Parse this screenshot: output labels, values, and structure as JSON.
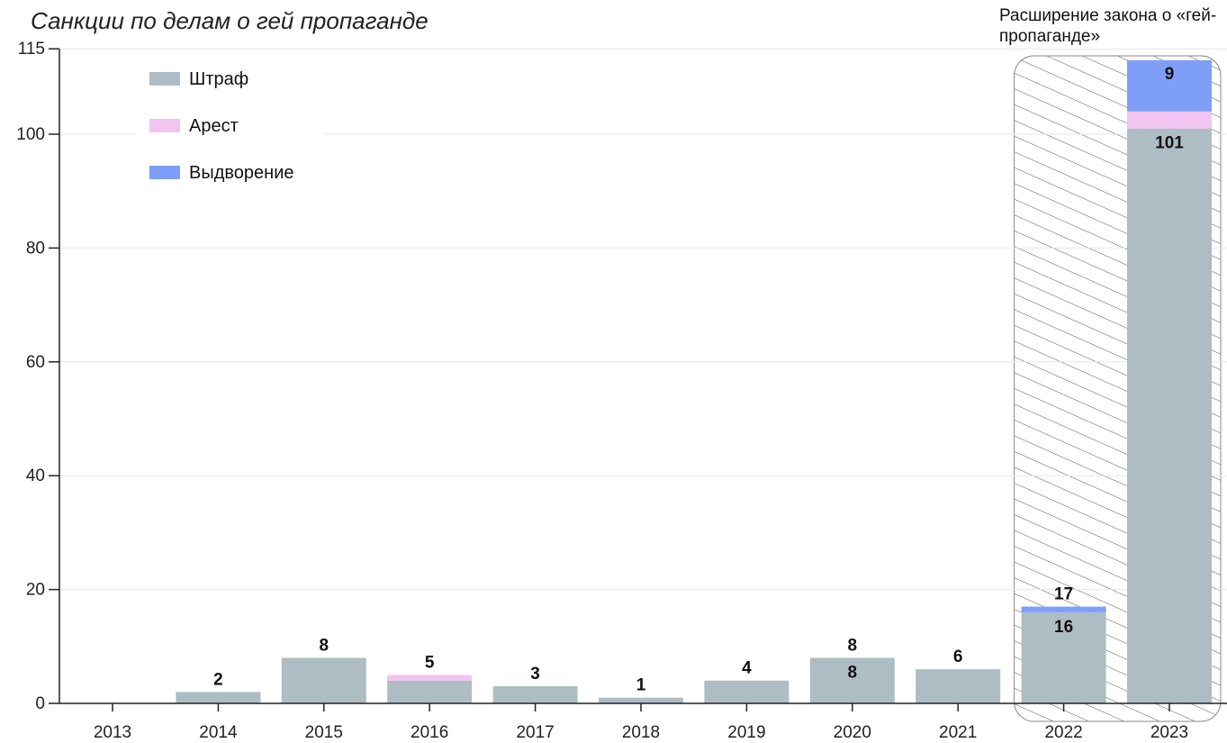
{
  "colors": {
    "fine": "#aebdc4",
    "arrest": "#f2c4f2",
    "deportation": "#7f9ef7",
    "grid": "#e4e6f5",
    "axis": "#222222",
    "hatch": "#555555"
  },
  "chart_data": {
    "type": "bar",
    "stacked": true,
    "title": "Санкции по делам о гей пропаганде",
    "annotation": "Расширение закона о «гей-пропаганде»",
    "annotation_years": [
      "2022",
      "2023"
    ],
    "categories": [
      "2013",
      "2014",
      "2015",
      "2016",
      "2017",
      "2018",
      "2019",
      "2020",
      "2021",
      "2022",
      "2023"
    ],
    "series": [
      {
        "name": "Штраф",
        "color_key": "fine",
        "values": [
          0,
          2,
          8,
          4,
          3,
          1,
          4,
          8,
          6,
          16,
          101
        ]
      },
      {
        "name": "Арест",
        "color_key": "arrest",
        "values": [
          0,
          0,
          0,
          1,
          0,
          0,
          0,
          0,
          0,
          0,
          3
        ]
      },
      {
        "name": "Выдворение",
        "color_key": "deportation",
        "values": [
          0,
          0,
          0,
          0,
          0,
          0,
          0,
          0,
          0,
          1,
          9
        ]
      }
    ],
    "data_labels": [
      {
        "category": "2014",
        "text": "2",
        "position": "top"
      },
      {
        "category": "2015",
        "text": "8",
        "position": "top"
      },
      {
        "category": "2016",
        "text": "5",
        "position": "top"
      },
      {
        "category": "2017",
        "text": "3",
        "position": "top"
      },
      {
        "category": "2018",
        "text": "1",
        "position": "top"
      },
      {
        "category": "2019",
        "text": "4",
        "position": "top"
      },
      {
        "category": "2020",
        "text": "8",
        "position": "top"
      },
      {
        "category": "2020",
        "text": "8",
        "position": "inside"
      },
      {
        "category": "2021",
        "text": "6",
        "position": "top"
      },
      {
        "category": "2022",
        "text": "17",
        "position": "top"
      },
      {
        "category": "2022",
        "text": "16",
        "position": "inside"
      },
      {
        "category": "2023",
        "text": "9",
        "position": "inside-top"
      },
      {
        "category": "2023",
        "text": "101",
        "position": "inside"
      }
    ],
    "y_ticks": [
      0,
      20,
      40,
      60,
      80,
      100,
      115
    ],
    "ylim": [
      0,
      115
    ],
    "grid": true,
    "legend_position": "top-left",
    "xlabel": "",
    "ylabel": ""
  }
}
